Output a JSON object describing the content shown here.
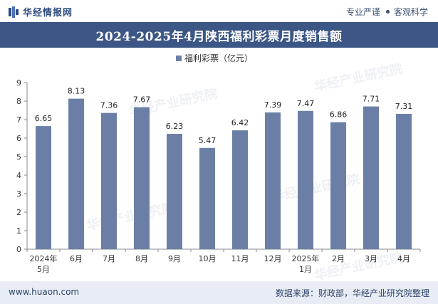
{
  "header": {
    "brand": "华经情报网",
    "slogan_a": "专业严谨",
    "slogan_b": "客观科学"
  },
  "title": "2024-2025年4月陕西福利彩票月度销售额",
  "footer": {
    "website": "www.huaon.com",
    "source": "数据来源：财政部，华经产业研究院整理"
  },
  "watermark": "华经产业研究院",
  "colors": {
    "bar": "#6b7fa6",
    "title_bg": "#3c5785",
    "axis": "#888888"
  },
  "chart_data": {
    "type": "bar",
    "title": "2024-2025年4月陕西福利彩票月度销售额",
    "categories": [
      "2024年\n5月",
      "6月",
      "7月",
      "8月",
      "9月",
      "10月",
      "11月",
      "12月",
      "2025年\n1月",
      "2月",
      "3月",
      "4月"
    ],
    "series": [
      {
        "name": "福利彩票（亿元）",
        "values": [
          6.65,
          8.13,
          7.36,
          7.67,
          6.23,
          5.47,
          6.42,
          7.39,
          7.47,
          6.86,
          7.71,
          7.31
        ]
      }
    ],
    "ylim": [
      0,
      9
    ],
    "yticks": [
      0,
      1,
      2,
      3,
      4,
      5,
      6,
      7,
      8,
      9
    ],
    "grid": false,
    "legend": "top-center",
    "data_labels": true
  }
}
